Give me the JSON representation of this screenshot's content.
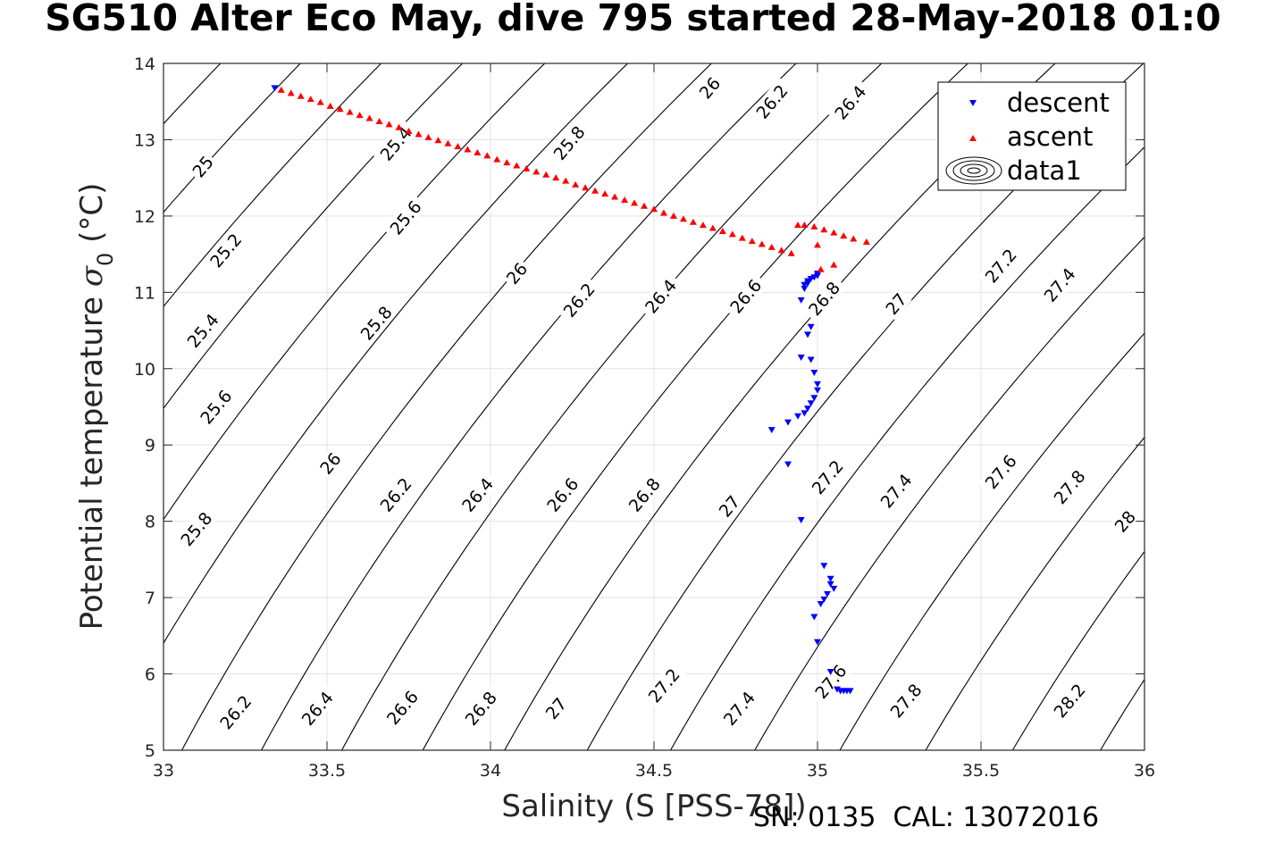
{
  "chart_data": {
    "type": "scatter",
    "title": "SG510 Alter Eco May, dive 795 started 28-May-2018 01:0",
    "xlabel": "Salinity (S [PSS-78])",
    "ylabel": "Potential temperature σ₀ (°C)",
    "ylabel_main": "Potential temperature ",
    "ylabel_sigma": "σ",
    "ylabel_sub": "0",
    "ylabel_unit": " (°C)",
    "xlim": [
      33,
      36
    ],
    "ylim": [
      5,
      14
    ],
    "xticks": [
      33,
      33.5,
      34,
      34.5,
      35,
      35.5,
      36
    ],
    "xtick_labels": [
      "33",
      "33.5",
      "34",
      "34.5",
      "35",
      "35.5",
      "36"
    ],
    "yticks": [
      5,
      6,
      7,
      8,
      9,
      10,
      11,
      12,
      13,
      14
    ],
    "ytick_labels": [
      "5",
      "6",
      "7",
      "8",
      "9",
      "10",
      "11",
      "12",
      "13",
      "14"
    ],
    "grid": true,
    "legend_position": "top-right",
    "legend": [
      {
        "label": "descent",
        "marker": "triangle-down",
        "color": "#0000ff"
      },
      {
        "label": "ascent",
        "marker": "triangle-up",
        "color": "#ff0000"
      },
      {
        "label": "data1",
        "marker": "contour",
        "color": "#000000"
      }
    ],
    "contours": [
      {
        "level": 24.8,
        "label": ""
      },
      {
        "level": 25.0,
        "label": "25"
      },
      {
        "level": 25.2,
        "label": "25.2"
      },
      {
        "level": 25.4,
        "label": "25.4"
      },
      {
        "level": 25.6,
        "label": "25.6"
      },
      {
        "level": 25.8,
        "label": "25.8"
      },
      {
        "level": 26.0,
        "label": "26"
      },
      {
        "level": 26.2,
        "label": "26.2"
      },
      {
        "level": 26.4,
        "label": "26.4"
      },
      {
        "level": 26.6,
        "label": "26.6"
      },
      {
        "level": 26.8,
        "label": "26.8"
      },
      {
        "level": 27.0,
        "label": "27"
      },
      {
        "level": 27.2,
        "label": "27.2"
      },
      {
        "level": 27.4,
        "label": "27.4"
      },
      {
        "level": 27.6,
        "label": "27.6"
      },
      {
        "level": 27.8,
        "label": "27.8"
      },
      {
        "level": 28.0,
        "label": "28"
      },
      {
        "level": 28.2,
        "label": "28.2"
      },
      {
        "level": 28.4,
        "label": ""
      }
    ],
    "contour_labels": [
      {
        "text": "25",
        "x": 33.12,
        "y": 12.65
      },
      {
        "text": "25.2",
        "x": 33.19,
        "y": 11.55
      },
      {
        "text": "25.4",
        "x": 33.12,
        "y": 10.5
      },
      {
        "text": "25.6",
        "x": 33.16,
        "y": 9.5
      },
      {
        "text": "25.8",
        "x": 33.1,
        "y": 7.9
      },
      {
        "text": "26.2",
        "x": 33.22,
        "y": 5.5
      },
      {
        "text": "25.4",
        "x": 33.71,
        "y": 12.95
      },
      {
        "text": "25.6",
        "x": 33.74,
        "y": 11.98
      },
      {
        "text": "25.8",
        "x": 33.65,
        "y": 10.6
      },
      {
        "text": "26",
        "x": 33.51,
        "y": 8.76
      },
      {
        "text": "26.2",
        "x": 33.71,
        "y": 8.35
      },
      {
        "text": "26.4",
        "x": 33.47,
        "y": 5.55
      },
      {
        "text": "26.6",
        "x": 33.73,
        "y": 5.56
      },
      {
        "text": "25.8",
        "x": 34.24,
        "y": 12.96
      },
      {
        "text": "26",
        "x": 34.08,
        "y": 11.25
      },
      {
        "text": "26.2",
        "x": 34.27,
        "y": 10.9
      },
      {
        "text": "26.4",
        "x": 33.96,
        "y": 8.35
      },
      {
        "text": "26.8",
        "x": 33.97,
        "y": 5.55
      },
      {
        "text": "26",
        "x": 34.67,
        "y": 13.68
      },
      {
        "text": "26.2",
        "x": 34.86,
        "y": 13.5
      },
      {
        "text": "26.4",
        "x": 34.52,
        "y": 10.95
      },
      {
        "text": "26.6",
        "x": 34.78,
        "y": 10.95
      },
      {
        "text": "26.6",
        "x": 34.22,
        "y": 8.35
      },
      {
        "text": "26.8",
        "x": 34.47,
        "y": 8.35
      },
      {
        "text": "27",
        "x": 34.2,
        "y": 5.55
      },
      {
        "text": "27.2",
        "x": 34.53,
        "y": 5.85
      },
      {
        "text": "26.4",
        "x": 35.1,
        "y": 13.49
      },
      {
        "text": "26.8",
        "x": 35.02,
        "y": 10.92
      },
      {
        "text": "27",
        "x": 34.73,
        "y": 8.2
      },
      {
        "text": "27.2",
        "x": 35.03,
        "y": 8.58
      },
      {
        "text": "27.4",
        "x": 34.76,
        "y": 5.55
      },
      {
        "text": "27.6",
        "x": 35.04,
        "y": 5.9
      },
      {
        "text": "27",
        "x": 35.24,
        "y": 10.85
      },
      {
        "text": "27.2",
        "x": 35.56,
        "y": 11.35
      },
      {
        "text": "27.4",
        "x": 35.24,
        "y": 8.4
      },
      {
        "text": "27.4",
        "x": 35.74,
        "y": 11.1
      },
      {
        "text": "27.6",
        "x": 35.56,
        "y": 8.65
      },
      {
        "text": "27.8",
        "x": 35.27,
        "y": 5.65
      },
      {
        "text": "27.8",
        "x": 35.77,
        "y": 8.45
      },
      {
        "text": "28",
        "x": 35.94,
        "y": 8.0
      },
      {
        "text": "28.2",
        "x": 35.77,
        "y": 5.65
      }
    ],
    "series": [
      {
        "name": "descent",
        "marker": "triangle-down",
        "color": "#0000ff",
        "x": [
          33.34,
          35.0,
          35.0,
          34.99,
          34.98,
          34.97,
          34.97,
          34.96,
          34.96,
          34.95,
          34.98,
          34.97,
          34.95,
          34.98,
          34.99,
          35.0,
          35.0,
          34.99,
          34.98,
          34.97,
          34.96,
          34.94,
          34.91,
          34.86,
          34.91,
          34.95,
          35.02,
          35.04,
          35.04,
          35.05,
          35.03,
          35.02,
          35.01,
          34.99,
          35.0,
          35.04,
          35.06,
          35.07,
          35.08,
          35.09,
          35.1
        ],
        "y": [
          13.68,
          11.25,
          11.22,
          11.2,
          11.18,
          11.15,
          11.12,
          11.1,
          11.05,
          10.9,
          10.55,
          10.45,
          10.15,
          10.12,
          9.95,
          9.8,
          9.72,
          9.62,
          9.55,
          9.48,
          9.42,
          9.38,
          9.3,
          9.2,
          8.75,
          8.02,
          7.42,
          7.25,
          7.18,
          7.12,
          7.05,
          6.98,
          6.92,
          6.75,
          6.42,
          6.03,
          5.8,
          5.78,
          5.78,
          5.78,
          5.78
        ]
      },
      {
        "name": "ascent",
        "marker": "triangle-up",
        "color": "#ff0000",
        "x": [
          33.36,
          33.39,
          33.42,
          33.45,
          33.48,
          33.51,
          33.54,
          33.57,
          33.6,
          33.63,
          33.66,
          33.69,
          33.72,
          33.75,
          33.78,
          33.81,
          33.84,
          33.87,
          33.9,
          33.93,
          33.96,
          33.99,
          34.02,
          34.05,
          34.08,
          34.11,
          34.14,
          34.17,
          34.2,
          34.23,
          34.26,
          34.29,
          34.32,
          34.35,
          34.38,
          34.41,
          34.44,
          34.47,
          34.5,
          34.53,
          34.56,
          34.59,
          34.62,
          34.65,
          34.68,
          34.71,
          34.74,
          34.77,
          34.8,
          34.83,
          34.86,
          34.89,
          34.92,
          34.94,
          34.96,
          34.99,
          35.02,
          35.05,
          35.08,
          35.11,
          35.15,
          35.0,
          35.01,
          35.05
        ],
        "y": [
          13.65,
          13.61,
          13.57,
          13.53,
          13.49,
          13.44,
          13.4,
          13.36,
          13.32,
          13.28,
          13.24,
          13.2,
          13.16,
          13.11,
          13.07,
          13.03,
          12.99,
          12.95,
          12.91,
          12.87,
          12.83,
          12.79,
          12.74,
          12.7,
          12.66,
          12.62,
          12.58,
          12.54,
          12.5,
          12.46,
          12.41,
          12.37,
          12.33,
          12.29,
          12.25,
          12.21,
          12.17,
          12.13,
          12.09,
          12.04,
          12.0,
          11.96,
          11.92,
          11.88,
          11.84,
          11.8,
          11.76,
          11.71,
          11.67,
          11.63,
          11.59,
          11.55,
          11.51,
          11.88,
          11.88,
          11.86,
          11.82,
          11.78,
          11.74,
          11.7,
          11.66,
          11.62,
          11.3,
          11.36
        ]
      }
    ]
  },
  "footer": {
    "serial_text": "SN: 0135  CAL: 13072016"
  }
}
